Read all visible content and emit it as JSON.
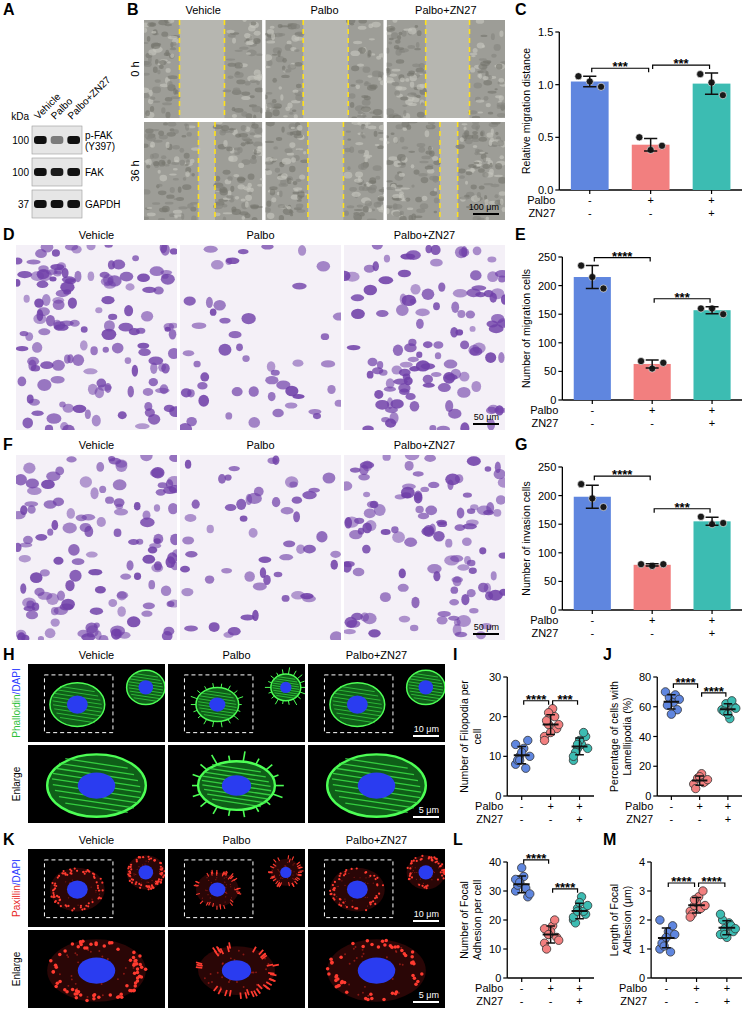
{
  "blot": {
    "panel": "A",
    "unit_label": "kDa",
    "lanes": [
      "Vehicle",
      "Palbo",
      "Palbo+ZN27"
    ],
    "rows": [
      {
        "name": "p-FAK (Y397)",
        "kda": 100
      },
      {
        "name": "FAK",
        "kda": 100
      },
      {
        "name": "GAPDH",
        "kda": 37
      }
    ]
  },
  "images": [
    {
      "panel": "B",
      "columns": [
        "Vehicle",
        "Palbo",
        "Palbo+ZN27"
      ],
      "rows": [
        "0 h",
        "36 h"
      ],
      "scale_bar": "100 μm"
    },
    {
      "panel": "D",
      "columns": [
        "Vehicle",
        "Palbo",
        "Palbo+ZN27"
      ],
      "scale_bar": "50 μm"
    },
    {
      "panel": "F",
      "columns": [
        "Vehicle",
        "Palbo",
        "Palbo+ZN27"
      ],
      "scale_bar": "50 μm"
    },
    {
      "panel": "H",
      "columns": [
        "Vehicle",
        "Palbo",
        "Palbo+ZN27"
      ],
      "stains": [
        {
          "text": "Phalloidin",
          "color": "#2fbf3a"
        },
        {
          "text": "/DAPI",
          "color": "#2f3cff"
        }
      ],
      "enlarge": "Enlarge",
      "scale_bars": [
        "10 μm",
        "5 μm"
      ]
    },
    {
      "panel": "K",
      "columns": [
        "Vehicle",
        "Palbo",
        "Palbo+ZN27"
      ],
      "stains": [
        {
          "text": "Paxillin",
          "color": "#e8281f"
        },
        {
          "text": "/DAPI",
          "color": "#2f3cff"
        }
      ],
      "enlarge": "Enlarge",
      "scale_bars": [
        "10 μm",
        "5 μm"
      ]
    }
  ],
  "chart_data": [
    {
      "panel": "C",
      "type": "bar",
      "y_label": "Relative migration distance",
      "categories": [
        null,
        null,
        null
      ],
      "colors": [
        "#5f86df",
        "#f27f7f",
        "#3cbcb2"
      ],
      "values": [
        1.03,
        0.43,
        1.01
      ],
      "errors": [
        0.05,
        0.06,
        0.1
      ],
      "points": [
        [
          1.08,
          1.03,
          0.98
        ],
        [
          0.5,
          0.38,
          0.42
        ],
        [
          1.1,
          1.02,
          0.9
        ]
      ],
      "ylim": [
        0,
        1.5
      ],
      "yticks": [
        {
          "value": 0,
          "label": "0.0"
        },
        {
          "value": 0.5,
          "label": "0.5"
        },
        {
          "value": 1,
          "label": "1.0"
        },
        {
          "value": 1.5,
          "label": "1.5"
        }
      ],
      "tick_labels": "y",
      "conditions": [
        {
          "name": "Palbo",
          "values": [
            "-",
            "+",
            "+"
          ]
        },
        {
          "name": "ZN27",
          "values": [
            "-",
            "-",
            "+"
          ]
        }
      ],
      "significance": [
        {
          "between": [
            0,
            1
          ],
          "label": "***"
        },
        {
          "between": [
            1,
            2
          ],
          "label": "***"
        }
      ]
    },
    {
      "panel": "E",
      "type": "bar",
      "y_label": "Number of migration cells",
      "categories": [
        null,
        null,
        null
      ],
      "colors": [
        "#5f86df",
        "#f27f7f",
        "#3cbcb2"
      ],
      "values": [
        215,
        63,
        157
      ],
      "errors": [
        20,
        7,
        6
      ],
      "points": [
        [
          235,
          215,
          195
        ],
        [
          68,
          55,
          65
        ],
        [
          160,
          160,
          150
        ]
      ],
      "ylim": [
        0,
        250
      ],
      "yticks": [
        0,
        50,
        100,
        150,
        200,
        250
      ],
      "tick_labels": "y",
      "conditions": [
        {
          "name": "Palbo",
          "values": [
            "-",
            "+",
            "+"
          ]
        },
        {
          "name": "ZN27",
          "values": [
            "-",
            "-",
            "+"
          ]
        }
      ],
      "significance": [
        {
          "between": [
            0,
            1
          ],
          "label": "****"
        },
        {
          "between": [
            1,
            2
          ],
          "label": "***"
        }
      ]
    },
    {
      "panel": "G",
      "type": "bar",
      "y_label": "Number of invasion cells",
      "categories": [
        null,
        null,
        null
      ],
      "colors": [
        "#5f86df",
        "#f27f7f",
        "#3cbcb2"
      ],
      "values": [
        198,
        79,
        155
      ],
      "errors": [
        20,
        2,
        7
      ],
      "points": [
        [
          220,
          195,
          180
        ],
        [
          80,
          77,
          80
        ],
        [
          163,
          150,
          152
        ]
      ],
      "ylim": [
        0,
        250
      ],
      "yticks": [
        0,
        50,
        100,
        150,
        200,
        250
      ],
      "tick_labels": "y",
      "conditions": [
        {
          "name": "Palbo",
          "values": [
            "-",
            "+",
            "+"
          ]
        },
        {
          "name": "ZN27",
          "values": [
            "-",
            "-",
            "+"
          ]
        }
      ],
      "significance": [
        {
          "between": [
            0,
            1
          ],
          "label": "****"
        },
        {
          "between": [
            1,
            2
          ],
          "label": "***"
        }
      ]
    },
    {
      "panel": "I",
      "type": "dot",
      "y_label": "Number of Filopodia per cell",
      "categories": [
        null,
        null,
        null
      ],
      "colors": [
        "#5f86df",
        "#f27f7f",
        "#3cbcb2"
      ],
      "values": [
        10.3,
        18,
        12.5
      ],
      "errors": [
        2.2,
        2.5,
        2.1
      ],
      "points": [
        [
          8,
          10,
          12,
          14,
          9,
          11,
          7,
          10,
          13,
          9
        ],
        [
          15,
          18,
          22,
          17,
          19,
          16,
          20,
          18,
          14,
          21
        ],
        [
          9,
          12,
          13,
          15,
          11,
          14,
          16,
          12,
          10,
          13
        ]
      ],
      "ylim": [
        0,
        30
      ],
      "yticks": [
        0,
        10,
        20,
        30
      ],
      "tick_labels": "y",
      "conditions": [
        {
          "name": "Palbo",
          "values": [
            "-",
            "+",
            "+"
          ]
        },
        {
          "name": "ZN27",
          "values": [
            "-",
            "-",
            "+"
          ]
        }
      ],
      "significance": [
        {
          "between": [
            0,
            1
          ],
          "label": "****"
        },
        {
          "between": [
            1,
            2
          ],
          "label": "***"
        }
      ]
    },
    {
      "panel": "J",
      "type": "dot",
      "y_label": "Percentage of cells with Lamellipodia (%)",
      "categories": [
        null,
        null,
        null
      ],
      "colors": [
        "#5f86df",
        "#f27f7f",
        "#3cbcb2"
      ],
      "values": [
        63.3,
        10.4,
        58.4
      ],
      "errors": [
        4.8,
        3.1,
        3.7
      ],
      "points": [
        [
          70,
          66,
          63,
          58,
          61,
          55,
          68,
          65
        ],
        [
          8,
          12,
          15,
          10,
          5,
          13,
          9,
          11
        ],
        [
          58,
          62,
          52,
          60,
          57,
          55,
          64,
          59
        ]
      ],
      "ylim": [
        0,
        80
      ],
      "yticks": [
        0,
        20,
        40,
        60,
        80
      ],
      "tick_labels": "y",
      "conditions": [
        {
          "name": "Palbo",
          "values": [
            "-",
            "+",
            "+"
          ]
        },
        {
          "name": "ZN27",
          "values": [
            "-",
            "-",
            "+"
          ]
        }
      ],
      "significance": [
        {
          "between": [
            0,
            1
          ],
          "label": "****"
        },
        {
          "between": [
            1,
            2
          ],
          "label": "****"
        }
      ]
    },
    {
      "panel": "L",
      "type": "dot",
      "y_label": "Number of Focal Adhesion per cell",
      "categories": [
        null,
        null,
        null
      ],
      "colors": [
        "#5f86df",
        "#f27f7f",
        "#3cbcb2"
      ],
      "values": [
        32.3,
        15,
        23.1
      ],
      "errors": [
        2.9,
        2.9,
        2.7
      ],
      "points": [
        [
          30,
          33,
          35,
          28,
          32,
          38,
          31,
          29,
          34,
          33
        ],
        [
          12,
          15,
          18,
          14,
          10,
          16,
          20,
          13,
          17,
          15
        ],
        [
          20,
          24,
          28,
          22,
          19,
          26,
          23,
          25,
          21,
          23
        ]
      ],
      "ylim": [
        0,
        40
      ],
      "yticks": [
        0,
        10,
        20,
        30,
        40
      ],
      "tick_labels": "y",
      "conditions": [
        {
          "name": "Palbo",
          "values": [
            "-",
            "+",
            "+"
          ]
        },
        {
          "name": "ZN27",
          "values": [
            "-",
            "-",
            "+"
          ]
        }
      ],
      "significance": [
        {
          "between": [
            0,
            1
          ],
          "label": "****"
        },
        {
          "between": [
            1,
            2
          ],
          "label": "****"
        }
      ]
    },
    {
      "panel": "M",
      "type": "dot",
      "y_label": "Length of Focal Adhesion (μm)",
      "categories": [
        null,
        null,
        null
      ],
      "colors": [
        "#5f86df",
        "#f27f7f",
        "#3cbcb2"
      ],
      "values": [
        1.38,
        2.51,
        1.73
      ],
      "errors": [
        0.34,
        0.27,
        0.24
      ],
      "points": [
        [
          1.0,
          1.3,
          1.6,
          1.8,
          1.2,
          1.4,
          0.9,
          1.5,
          2.0,
          1.1
        ],
        [
          2.3,
          2.5,
          2.8,
          3.0,
          2.2,
          2.6,
          2.4,
          2.5,
          2.1,
          2.7
        ],
        [
          1.5,
          1.7,
          1.9,
          1.6,
          2.0,
          1.4,
          1.8,
          1.7,
          2.2,
          1.5
        ]
      ],
      "ylim": [
        0,
        4
      ],
      "yticks": [
        0,
        1,
        2,
        3,
        4
      ],
      "tick_labels": "y",
      "conditions": [
        {
          "name": "Palbo",
          "values": [
            "-",
            "+",
            "+"
          ]
        },
        {
          "name": "ZN27",
          "values": [
            "-",
            "-",
            "+"
          ]
        }
      ],
      "significance": [
        {
          "between": [
            0,
            1
          ],
          "label": "****"
        },
        {
          "between": [
            1,
            2
          ],
          "label": "****"
        }
      ]
    }
  ]
}
